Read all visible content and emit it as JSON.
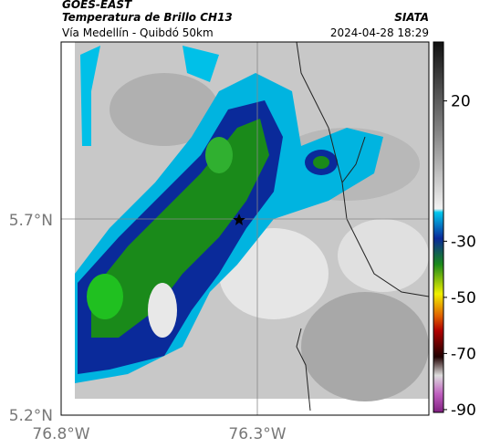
{
  "header": {
    "satellite": "GOES-EAST",
    "title": "Temperatura de Brillo CH13",
    "subtitle": "Vía Medellín - Quibdó 50km",
    "brand": "SIATA",
    "timestamp": "2024-04-28 18:29"
  },
  "map": {
    "lat_labels": [
      "5.7°N",
      "5.2°N"
    ],
    "lon_labels": [
      "76.8°W",
      "76.3°W"
    ]
  },
  "colorbar": {
    "lim": [
      -91,
      41
    ],
    "ticks": [
      20,
      -30,
      -50,
      -70,
      -90
    ]
  }
}
